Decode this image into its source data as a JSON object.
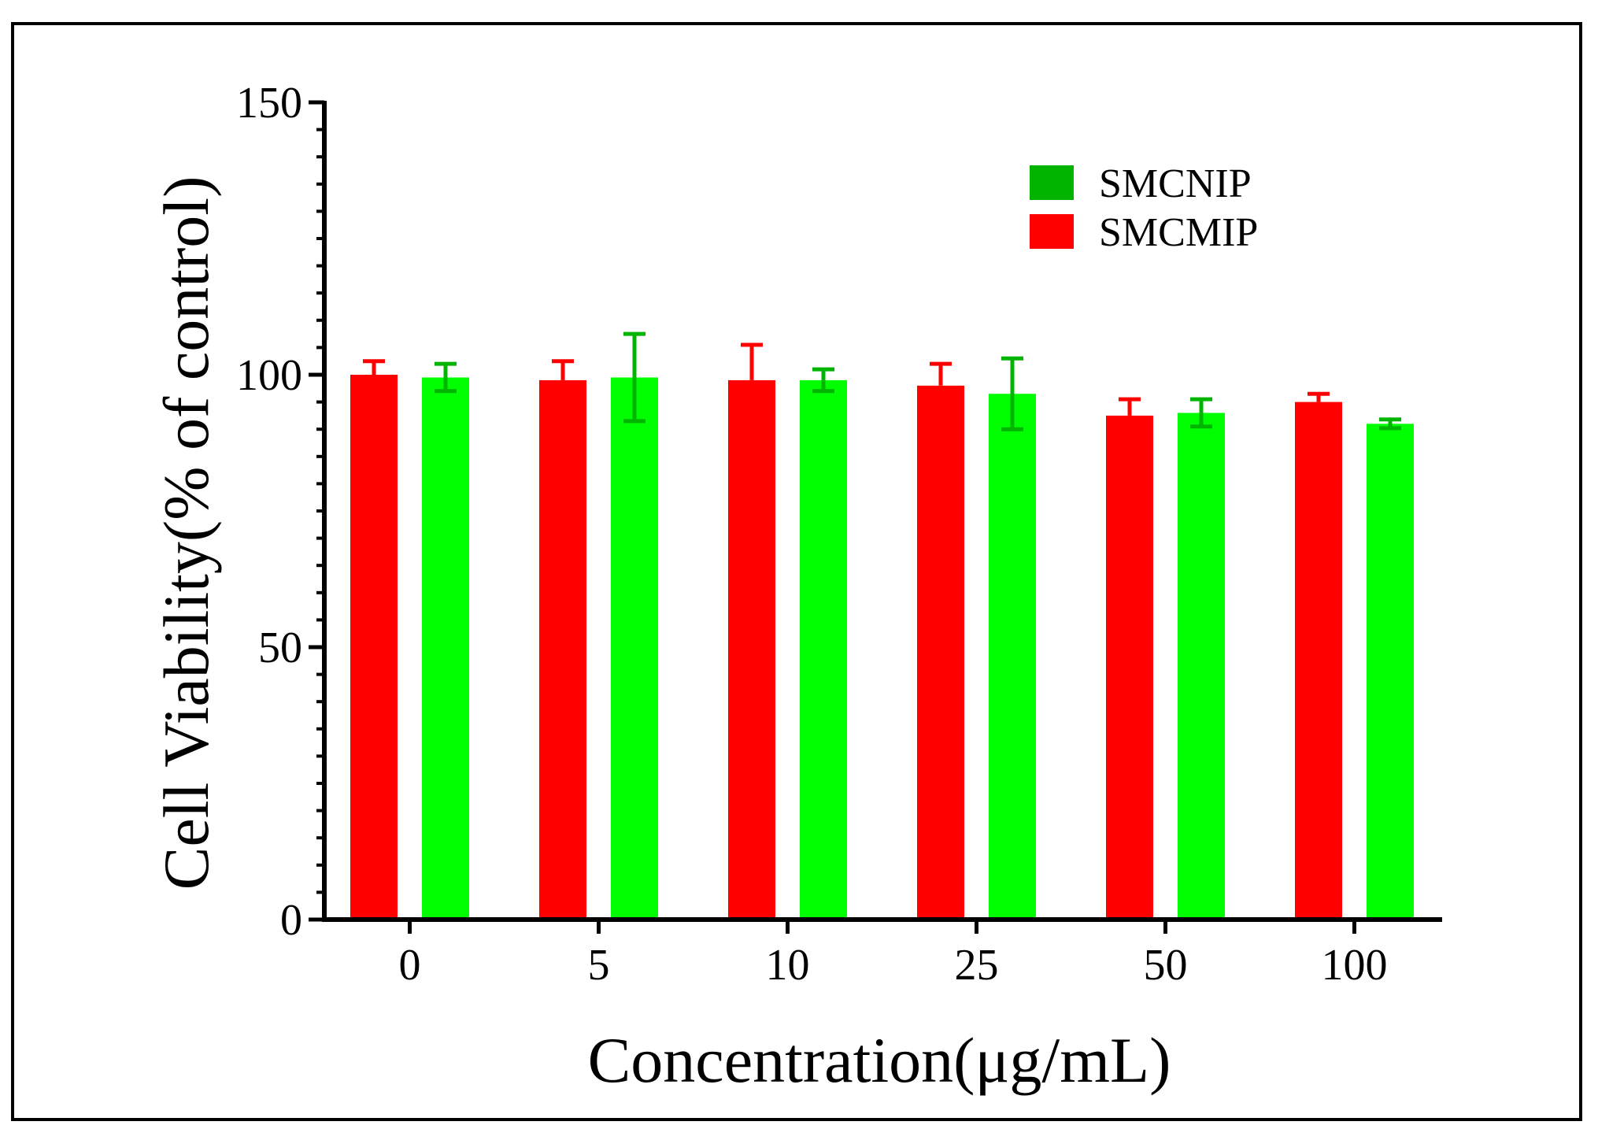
{
  "chart_data": {
    "type": "bar",
    "categories": [
      "0",
      "5",
      "10",
      "25",
      "50",
      "100"
    ],
    "series": [
      {
        "name": "SMCMIP",
        "color": "#ff0000",
        "errcolor": "#ff0000",
        "values": [
          100,
          99,
          99,
          98,
          92.5,
          95
        ],
        "errors": [
          2.5,
          3.5,
          6.5,
          4,
          3,
          1.5
        ]
      },
      {
        "name": "SMCNIP",
        "color": "#00ff00",
        "errcolor": "#00b400",
        "values": [
          99.5,
          99.5,
          99,
          96.5,
          93,
          91
        ],
        "errors": [
          2.5,
          8,
          2,
          6.5,
          2.5,
          0.8
        ]
      }
    ],
    "legend_order": [
      "SMCNIP",
      "SMCMIP"
    ],
    "legend_swatch_colors": {
      "SMCNIP": "#00b400",
      "SMCMIP": "#ff0000"
    },
    "legend_position": "top-right",
    "xlabel": "Concentration(μg/mL)",
    "ylabel": "Cell Viability(% of control)",
    "ylim": [
      0,
      150
    ],
    "yticks_major": [
      0,
      50,
      100,
      150
    ],
    "ytick_minor_step": 5,
    "grid": false
  }
}
